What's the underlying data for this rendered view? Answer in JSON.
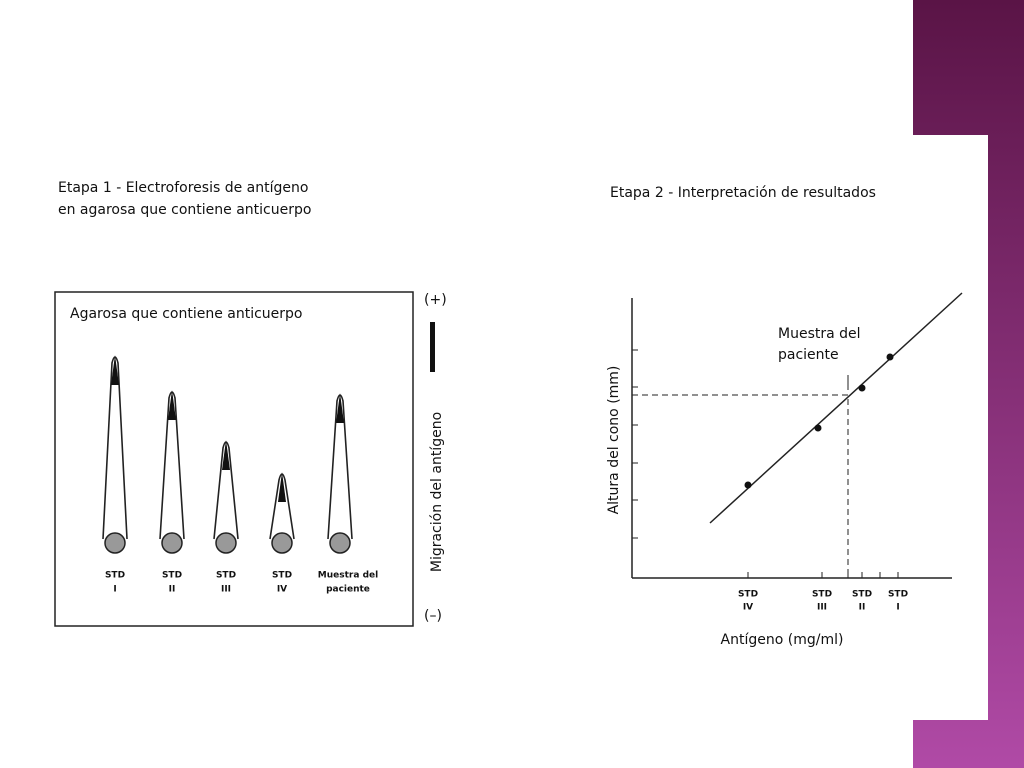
{
  "step1": {
    "title": [
      "Etapa 1 - Electroforesis de antígeno",
      "en agarosa que contiene anticuerpo"
    ],
    "gel_label": "Agarosa que contiene anticuerpo",
    "wells": [
      {
        "label": [
          "STD",
          "I"
        ]
      },
      {
        "label": [
          "STD",
          "II"
        ]
      },
      {
        "label": [
          "STD",
          "III"
        ]
      },
      {
        "label": [
          "STD",
          "IV"
        ]
      },
      {
        "label": [
          "Muestra del",
          "paciente"
        ]
      }
    ],
    "anode": "(+)",
    "cathode": "(–)",
    "migration_label": "Migración del antígeno"
  },
  "step2": {
    "title": "Etapa 2 - Interpretación de resultados",
    "y_axis_label": "Altura del cono (mm)",
    "x_axis_label": "Antígeno (mg/ml)",
    "annotation": [
      "Muestra del",
      "paciente"
    ],
    "x_tick_labels": [
      [
        "STD",
        "IV"
      ],
      [
        "STD",
        "III"
      ],
      [
        "STD",
        "II"
      ],
      [
        "STD",
        "I"
      ]
    ]
  }
}
